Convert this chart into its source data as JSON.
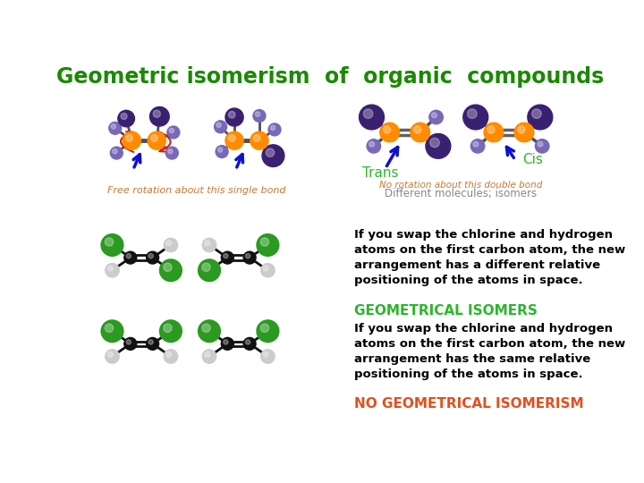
{
  "title": "Geometric isomerism  of  organic  compounds",
  "title_color": "#1a8a00",
  "title_fontsize": 17,
  "bg_color": "#ffffff",
  "text1": "If you swap the chlorine and hydrogen\natoms on the first carbon atom, the new\narrangement has a different relative\npositioning of the atoms in space.",
  "text1_color": "#000000",
  "label_geo": "GEOMETRICAL ISOMERS",
  "label_geo_color": "#2db52d",
  "text2": "If you swap the chlorine and hydrogen\natoms on the first carbon atom, the new\narrangement has the same relative\npositioning of the atoms in space.",
  "text2_color": "#000000",
  "label_no_geo": "NO GEOMETRICAL ISOMERISM",
  "label_no_geo_color": "#e05020",
  "free_rotation_text": "Free rotation about this single bond",
  "free_rotation_color": "#c87832",
  "no_rotation_line1": "No rotation about this double bond",
  "no_rotation_line2": "Different molecules; isomers",
  "no_rotation_color1": "#c87832",
  "no_rotation_color2": "#888888",
  "trans_label": "Trans",
  "cis_label": "Cis",
  "trans_color": "#2db52d",
  "cis_color": "#2db52d",
  "arrow_color": "#1010cc",
  "rotation_arrow_color": "#cc2020",
  "orange_color": "#ff8c00",
  "purple_large_color": "#3a2070",
  "purple_small_color": "#7868b8",
  "green_color": "#2a9a20",
  "black_color": "#111111",
  "white_atom_color": "#cccccc",
  "bond_color": "#404040"
}
